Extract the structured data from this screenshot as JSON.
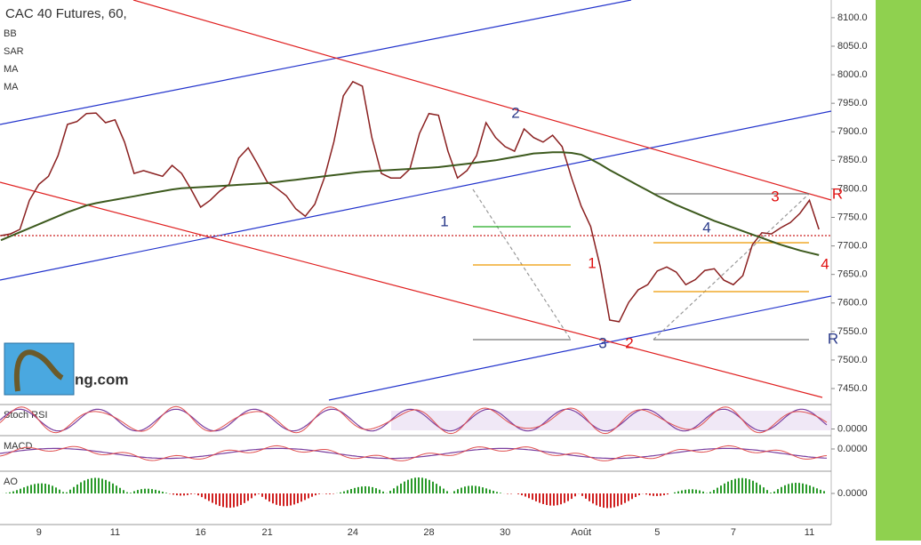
{
  "chart_data": {
    "type": "line",
    "title": "CAC 40 Futures, 60,",
    "indicators": [
      "BB",
      "SAR",
      "MA",
      "MA"
    ],
    "categories": [
      null,
      null,
      null,
      null,
      "9",
      null,
      null,
      null,
      null,
      null,
      null,
      null,
      "11",
      null,
      null,
      null,
      null,
      null,
      null,
      null,
      null,
      "16",
      null,
      null,
      null,
      null,
      null,
      null,
      "21",
      null,
      null,
      null,
      null,
      null,
      null,
      null,
      null,
      "24",
      null,
      null,
      null,
      null,
      null,
      null,
      null,
      "28",
      null,
      null,
      null,
      null,
      null,
      null,
      null,
      "30",
      null,
      null,
      null,
      null,
      null,
      null,
      null,
      "Août",
      null,
      null,
      null,
      null,
      null,
      null,
      null,
      "5",
      null,
      null,
      null,
      null,
      null,
      null,
      null,
      "7",
      null,
      null,
      null,
      null,
      null,
      null,
      null,
      "11",
      null
    ],
    "series": [
      {
        "name": "CAC 40 Futures",
        "color": "#8a2020",
        "values": [
          7718,
          7721,
          7729,
          7780,
          7808,
          7822,
          7858,
          7913,
          7918,
          7932,
          7933,
          7916,
          7921,
          7882,
          7827,
          7832,
          7827,
          7822,
          7841,
          7827,
          7799,
          7768,
          7780,
          7796,
          7808,
          7854,
          7872,
          7843,
          7812,
          7801,
          7788,
          7765,
          7752,
          7773,
          7819,
          7882,
          7963,
          7988,
          7980,
          7890,
          7827,
          7819,
          7819,
          7835,
          7897,
          7932,
          7929,
          7866,
          7819,
          7832,
          7858,
          7916,
          7890,
          7874,
          7866,
          7905,
          7890,
          7882,
          7894,
          7874,
          7819,
          7770,
          7734,
          7664,
          7570,
          7567,
          7601,
          7623,
          7632,
          7656,
          7663,
          7654,
          7632,
          7641,
          7657,
          7660,
          7640,
          7632,
          7648,
          7702,
          7723,
          7721,
          7732,
          7741,
          7757,
          7780,
          7729
        ]
      },
      {
        "name": "MA",
        "color": "#3d5a1e",
        "values": [
          7710,
          7717,
          7724,
          7731,
          7738,
          7745,
          7752,
          7759,
          7765,
          7771,
          7775,
          7778,
          7781,
          7784,
          7787,
          7790,
          7793,
          7796,
          7799,
          7801,
          7802,
          7803,
          7804,
          7805,
          7806,
          7807,
          7808,
          7809,
          7810,
          7812,
          7814,
          7816,
          7818,
          7820,
          7822,
          7824,
          7826,
          7828,
          7830,
          7831,
          7832,
          7833,
          7834,
          7835,
          7836,
          7837,
          7838,
          7840,
          7842,
          7844,
          7846,
          7848,
          7850,
          7853,
          7856,
          7859,
          7862,
          7863,
          7864,
          7864,
          7863,
          7860,
          7852,
          7843,
          7833,
          7824,
          7815,
          7806,
          7797,
          7788,
          7780,
          7772,
          7765,
          7758,
          7751,
          7744,
          7738,
          7732,
          7726,
          7720,
          7714,
          7708,
          7702,
          7697,
          7692,
          7688,
          7684
        ]
      }
    ],
    "ylim": [
      7422,
      8131
    ],
    "yticks": [
      {
        "value": 7450,
        "label": "7450.0"
      },
      {
        "value": 7500,
        "label": "7500.0"
      },
      {
        "value": 7550,
        "label": "7550.0"
      },
      {
        "value": 7600,
        "label": "7600.0"
      },
      {
        "value": 7650,
        "label": "7650.0"
      },
      {
        "value": 7700,
        "label": "7700.0"
      },
      {
        "value": 7750,
        "label": "7750.0"
      },
      {
        "value": 7800,
        "label": "7800.0"
      },
      {
        "value": 7850,
        "label": "7850.0"
      },
      {
        "value": 7900,
        "label": "7900.0"
      },
      {
        "value": 7950,
        "label": "7950.0"
      },
      {
        "value": 8000,
        "label": "8000.0"
      },
      {
        "value": 8050,
        "label": "8050.0"
      },
      {
        "value": 8100,
        "label": "8100.0"
      }
    ],
    "annotations": [
      {
        "text": "1",
        "color": "#2a3a8a"
      },
      {
        "text": "2",
        "color": "#2a3a8a"
      },
      {
        "text": "3",
        "color": "#2a3a8a"
      },
      {
        "text": "4",
        "color": "#2a3a8a"
      },
      {
        "text": "1",
        "color": "#e01010"
      },
      {
        "text": "2",
        "color": "#e01010"
      },
      {
        "text": "3",
        "color": "#e01010"
      },
      {
        "text": "4",
        "color": "#e01010"
      },
      {
        "text": "R",
        "color": "#2a3a8a"
      },
      {
        "text": "R",
        "color": "#e01010"
      }
    ],
    "subpanels": [
      {
        "name": "Stoch RSI",
        "ticks": [
          {
            "value": 0,
            "label": "0.0000"
          }
        ]
      },
      {
        "name": "MACD",
        "ticks": [
          {
            "value": 0,
            "label": "0.0000"
          }
        ]
      },
      {
        "name": "AO",
        "ticks": [
          {
            "value": 0,
            "label": "0.0000"
          }
        ]
      }
    ],
    "logo_text": "ng.com"
  }
}
